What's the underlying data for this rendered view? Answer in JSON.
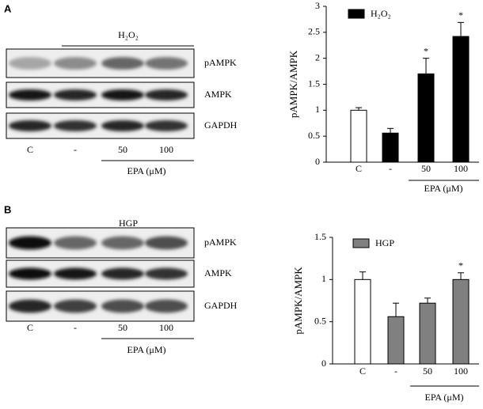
{
  "chart_data": [
    {
      "type": "bar",
      "panel": "A",
      "ylabel": "pAMPK/AMPK",
      "xgroup_label": "EPA (μM)",
      "categories": [
        "C",
        "-",
        "50",
        "100"
      ],
      "values": [
        1.0,
        0.56,
        1.7,
        2.42
      ],
      "errors": [
        0.05,
        0.09,
        0.3,
        0.27
      ],
      "bar_colors": [
        "#ffffff",
        "#000000",
        "#000000",
        "#000000"
      ],
      "significance": [
        null,
        null,
        "*",
        "*"
      ],
      "legend": {
        "label": "H₂O₂",
        "color": "#000000"
      },
      "ylim": [
        0,
        3
      ],
      "yticks": [
        0,
        0.5,
        1,
        1.5,
        2,
        2.5,
        3
      ]
    },
    {
      "type": "bar",
      "panel": "B",
      "ylabel": "pAMPK/AMPK",
      "xgroup_label": "EPA (μM)",
      "categories": [
        "C",
        "-",
        "50",
        "100"
      ],
      "values": [
        1.0,
        0.56,
        0.72,
        1.0
      ],
      "errors": [
        0.09,
        0.16,
        0.06,
        0.08
      ],
      "bar_colors": [
        "#ffffff",
        "#808080",
        "#808080",
        "#808080"
      ],
      "significance": [
        null,
        null,
        null,
        "*"
      ],
      "legend": {
        "label": "HGP",
        "color": "#808080"
      },
      "ylim": [
        0,
        1.5
      ],
      "yticks": [
        0,
        0.5,
        1,
        1.5
      ]
    }
  ],
  "blots": [
    {
      "panel": "A",
      "treatment": "H₂O₂",
      "bands": [
        "pAMPK",
        "AMPK",
        "GAPDH"
      ],
      "lanes": [
        "C",
        "-",
        "50",
        "100"
      ],
      "dose_label": "EPA (μM)"
    },
    {
      "panel": "B",
      "treatment": "HGP",
      "bands": [
        "pAMPK",
        "AMPK",
        "GAPDH"
      ],
      "lanes": [
        "C",
        "-",
        "50",
        "100"
      ],
      "dose_label": "EPA (μM)"
    }
  ]
}
